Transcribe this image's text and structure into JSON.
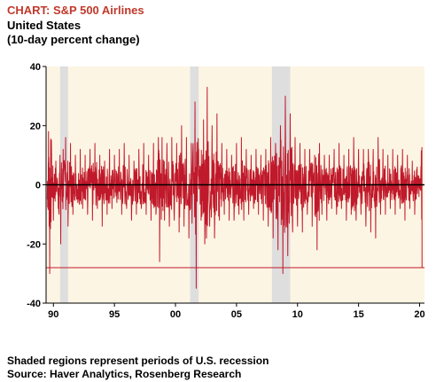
{
  "header": {
    "title": "CHART: S&P 500 Airlines",
    "subtitle_1": "United States",
    "subtitle_2": "(10-day percent change)"
  },
  "footer": {
    "note": "Shaded regions represent periods of U.S. recession",
    "source": "Source: Haver Analytics, Rosenberg Research"
  },
  "colors": {
    "series": "#c0192b",
    "background": "#fdf5e4",
    "recession": "#dedede",
    "reference_line": "#c0192b"
  },
  "chart_data": {
    "type": "line",
    "title": "CHART: S&P 500 Airlines",
    "xlabel": "",
    "ylabel": "",
    "xlim": [
      1989.4,
      2020.4
    ],
    "ylim": [
      -40,
      40
    ],
    "x_tick_labels": [
      "90",
      "95",
      "00",
      "05",
      "10",
      "15",
      "20"
    ],
    "x_tick_values": [
      1990,
      1995,
      2000,
      2005,
      2010,
      2015,
      2020
    ],
    "y_ticks": [
      40,
      20,
      0,
      -20,
      -40
    ],
    "grid": false,
    "legend": "none",
    "zero_line": 0,
    "reference_line": -28,
    "recessions": [
      [
        1990.55,
        1991.2
      ],
      [
        2001.2,
        2001.9
      ],
      [
        2007.9,
        2009.4
      ]
    ],
    "series": [
      {
        "name": "",
        "points": [
          [
            1989.5,
            -5
          ],
          [
            1989.6,
            18
          ],
          [
            1989.7,
            -30
          ],
          [
            1989.85,
            10
          ],
          [
            1990.0,
            -12
          ],
          [
            1990.2,
            8
          ],
          [
            1990.4,
            -8
          ],
          [
            1990.6,
            -20
          ],
          [
            1990.8,
            12
          ],
          [
            1991.0,
            16
          ],
          [
            1991.2,
            -14
          ],
          [
            1991.4,
            14
          ],
          [
            1991.6,
            -10
          ],
          [
            1991.8,
            10
          ],
          [
            1992.0,
            -6
          ],
          [
            1992.2,
            12
          ],
          [
            1992.4,
            -8
          ],
          [
            1992.6,
            10
          ],
          [
            1992.8,
            -10
          ],
          [
            1993.0,
            12
          ],
          [
            1993.2,
            -12
          ],
          [
            1993.4,
            14
          ],
          [
            1993.6,
            -8
          ],
          [
            1993.8,
            10
          ],
          [
            1994.0,
            -14
          ],
          [
            1994.2,
            8
          ],
          [
            1994.4,
            -10
          ],
          [
            1994.6,
            12
          ],
          [
            1994.8,
            -8
          ],
          [
            1995.0,
            10
          ],
          [
            1995.2,
            -6
          ],
          [
            1995.4,
            12
          ],
          [
            1995.6,
            -10
          ],
          [
            1995.8,
            14
          ],
          [
            1996.0,
            -8
          ],
          [
            1996.2,
            10
          ],
          [
            1996.4,
            -12
          ],
          [
            1996.6,
            8
          ],
          [
            1996.8,
            -10
          ],
          [
            1997.0,
            12
          ],
          [
            1997.2,
            -8
          ],
          [
            1997.4,
            14
          ],
          [
            1997.6,
            -10
          ],
          [
            1997.8,
            10
          ],
          [
            1998.0,
            -12
          ],
          [
            1998.2,
            14
          ],
          [
            1998.4,
            -10
          ],
          [
            1998.6,
            16
          ],
          [
            1998.7,
            -26
          ],
          [
            1998.9,
            16
          ],
          [
            1999.1,
            -12
          ],
          [
            1999.3,
            14
          ],
          [
            1999.5,
            -14
          ],
          [
            1999.7,
            16
          ],
          [
            1999.9,
            -12
          ],
          [
            2000.1,
            14
          ],
          [
            2000.3,
            -16
          ],
          [
            2000.5,
            20
          ],
          [
            2000.7,
            -14
          ],
          [
            2000.9,
            16
          ],
          [
            2001.1,
            -18
          ],
          [
            2001.3,
            14
          ],
          [
            2001.6,
            28
          ],
          [
            2001.7,
            -35
          ],
          [
            2001.9,
            12
          ],
          [
            2002.1,
            -12
          ],
          [
            2002.3,
            22
          ],
          [
            2002.4,
            -20
          ],
          [
            2002.6,
            33
          ],
          [
            2002.8,
            -14
          ],
          [
            2003.0,
            20
          ],
          [
            2003.2,
            -18
          ],
          [
            2003.4,
            24
          ],
          [
            2003.6,
            -12
          ],
          [
            2003.8,
            14
          ],
          [
            2004.0,
            -10
          ],
          [
            2004.2,
            12
          ],
          [
            2004.4,
            -12
          ],
          [
            2004.6,
            10
          ],
          [
            2004.8,
            -12
          ],
          [
            2005.0,
            14
          ],
          [
            2005.2,
            -10
          ],
          [
            2005.4,
            16
          ],
          [
            2005.6,
            -12
          ],
          [
            2005.8,
            12
          ],
          [
            2006.0,
            -10
          ],
          [
            2006.2,
            10
          ],
          [
            2006.4,
            -8
          ],
          [
            2006.6,
            12
          ],
          [
            2006.8,
            -10
          ],
          [
            2007.0,
            10
          ],
          [
            2007.2,
            -12
          ],
          [
            2007.4,
            12
          ],
          [
            2007.6,
            -14
          ],
          [
            2007.8,
            16
          ],
          [
            2008.0,
            -18
          ],
          [
            2008.2,
            14
          ],
          [
            2008.4,
            -22
          ],
          [
            2008.6,
            20
          ],
          [
            2008.8,
            -30
          ],
          [
            2009.0,
            30
          ],
          [
            2009.2,
            -24
          ],
          [
            2009.4,
            24
          ],
          [
            2009.6,
            -16
          ],
          [
            2009.8,
            16
          ],
          [
            2010.0,
            -14
          ],
          [
            2010.2,
            14
          ],
          [
            2010.4,
            -16
          ],
          [
            2010.6,
            12
          ],
          [
            2010.8,
            -10
          ],
          [
            2011.0,
            12
          ],
          [
            2011.2,
            -14
          ],
          [
            2011.4,
            10
          ],
          [
            2011.6,
            -22
          ],
          [
            2011.8,
            14
          ],
          [
            2012.0,
            -10
          ],
          [
            2012.2,
            10
          ],
          [
            2012.4,
            -12
          ],
          [
            2012.6,
            10
          ],
          [
            2012.8,
            -8
          ],
          [
            2013.0,
            12
          ],
          [
            2013.2,
            -10
          ],
          [
            2013.4,
            14
          ],
          [
            2013.6,
            -8
          ],
          [
            2013.8,
            10
          ],
          [
            2014.0,
            -12
          ],
          [
            2014.2,
            12
          ],
          [
            2014.4,
            -10
          ],
          [
            2014.6,
            16
          ],
          [
            2014.8,
            -12
          ],
          [
            2015.0,
            12
          ],
          [
            2015.2,
            -10
          ],
          [
            2015.4,
            12
          ],
          [
            2015.6,
            -14
          ],
          [
            2015.8,
            12
          ],
          [
            2016.0,
            -16
          ],
          [
            2016.2,
            12
          ],
          [
            2016.4,
            -18
          ],
          [
            2016.6,
            16
          ],
          [
            2016.8,
            -10
          ],
          [
            2017.0,
            12
          ],
          [
            2017.2,
            -10
          ],
          [
            2017.4,
            10
          ],
          [
            2017.6,
            -8
          ],
          [
            2017.8,
            12
          ],
          [
            2018.0,
            -10
          ],
          [
            2018.2,
            10
          ],
          [
            2018.4,
            -8
          ],
          [
            2018.6,
            12
          ],
          [
            2018.8,
            -12
          ],
          [
            2019.0,
            10
          ],
          [
            2019.2,
            -8
          ],
          [
            2019.4,
            8
          ],
          [
            2019.6,
            -10
          ],
          [
            2019.8,
            6
          ],
          [
            2019.95,
            -4
          ],
          [
            2020.1,
            4
          ],
          [
            2020.2,
            -28
          ]
        ]
      }
    ]
  }
}
